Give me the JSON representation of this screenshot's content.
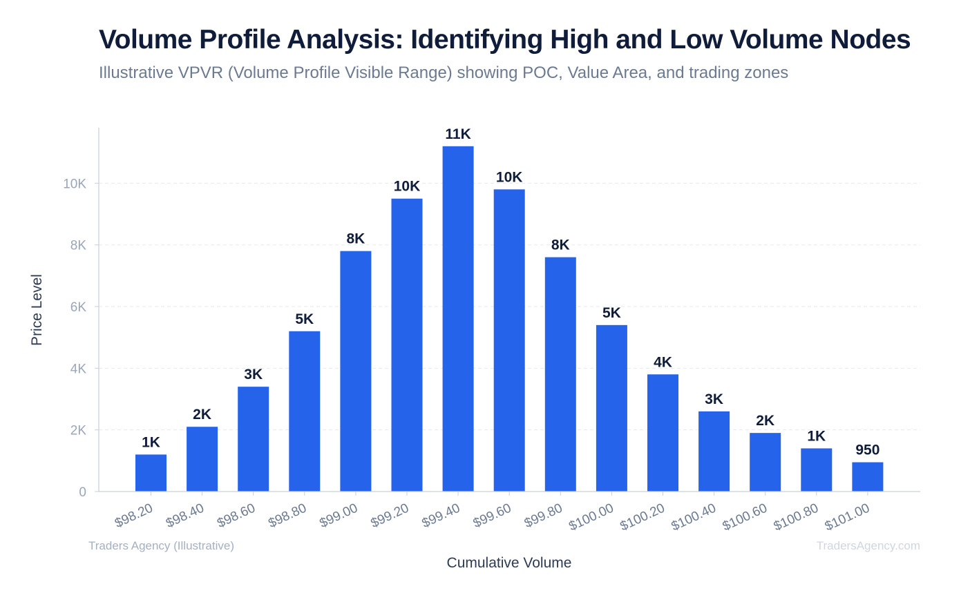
{
  "chart_data": {
    "type": "bar",
    "title": "Volume Profile Analysis: Identifying High and Low Volume Nodes",
    "subtitle": "Illustrative VPVR (Volume Profile Visible Range) showing POC, Value Area, and trading zones",
    "xlabel": "Cumulative Volume",
    "ylabel": "Price Level",
    "categories": [
      "$98.20",
      "$98.40",
      "$98.60",
      "$98.80",
      "$99.00",
      "$99.20",
      "$99.40",
      "$99.60",
      "$99.80",
      "$100.00",
      "$100.20",
      "$100.40",
      "$100.60",
      "$100.80",
      "$101.00"
    ],
    "values": [
      1200,
      2100,
      3400,
      5200,
      7800,
      9500,
      11200,
      9800,
      7600,
      5400,
      3800,
      2600,
      1900,
      1400,
      950
    ],
    "data_labels": [
      "1K",
      "2K",
      "3K",
      "5K",
      "8K",
      "10K",
      "11K",
      "10K",
      "8K",
      "5K",
      "4K",
      "3K",
      "2K",
      "1K",
      "950"
    ],
    "yticks": [
      0,
      2000,
      4000,
      6000,
      8000,
      10000
    ],
    "ytick_labels": [
      "0",
      "2K",
      "4K",
      "6K",
      "8K",
      "10K"
    ],
    "ylim": [
      0,
      11800
    ],
    "grid": true,
    "bar_color": "#2563eb",
    "footer_left": "Traders Agency (Illustrative)",
    "footer_right": "TradersAgency.com"
  }
}
